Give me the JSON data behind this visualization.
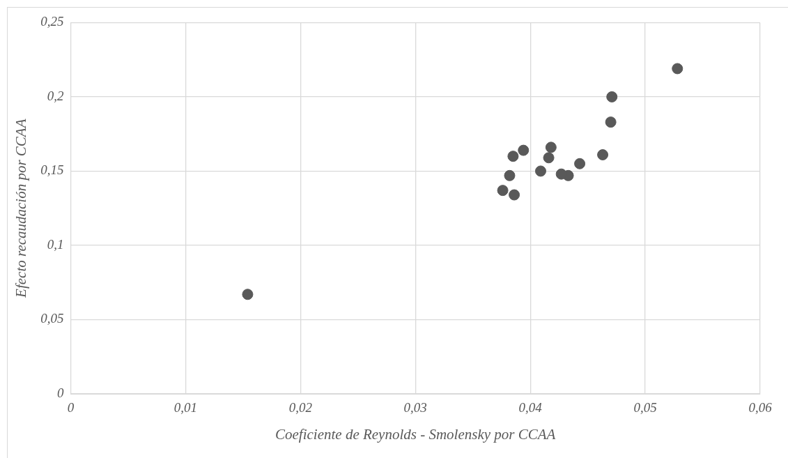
{
  "chart_data": {
    "type": "scatter",
    "xlabel": "Coeficiente de Reynolds - Smolensky por CCAA",
    "ylabel": "Efecto recaudación por CCAA",
    "x": [
      0.0154,
      0.0528,
      0.0471,
      0.047,
      0.0463,
      0.0443,
      0.0433,
      0.0427,
      0.0418,
      0.0416,
      0.0409,
      0.0394,
      0.0385,
      0.0382,
      0.0376,
      0.0386
    ],
    "values": [
      0.067,
      0.219,
      0.2,
      0.183,
      0.161,
      0.155,
      0.147,
      0.148,
      0.166,
      0.159,
      0.15,
      0.164,
      0.16,
      0.147,
      0.137,
      0.134
    ],
    "color": "#595959",
    "marker": "circle",
    "xlim": [
      0,
      0.06
    ],
    "xticks": [
      {
        "value": 0,
        "label": "0"
      },
      {
        "value": 0.01,
        "label": "0,01"
      },
      {
        "value": 0.02,
        "label": "0,02"
      },
      {
        "value": 0.03,
        "label": "0,03"
      },
      {
        "value": 0.04,
        "label": "0,04"
      },
      {
        "value": 0.05,
        "label": "0,05"
      },
      {
        "value": 0.06,
        "label": "0,06"
      }
    ],
    "ylim": [
      0,
      0.25
    ],
    "yticks": [
      {
        "value": 0,
        "label": "0"
      },
      {
        "value": 0.05,
        "label": "0,05"
      },
      {
        "value": 0.1,
        "label": "0,1"
      },
      {
        "value": 0.15,
        "label": "0,15"
      },
      {
        "value": 0.2,
        "label": "0,2"
      },
      {
        "value": 0.25,
        "label": "0,25"
      }
    ],
    "grid": true
  }
}
